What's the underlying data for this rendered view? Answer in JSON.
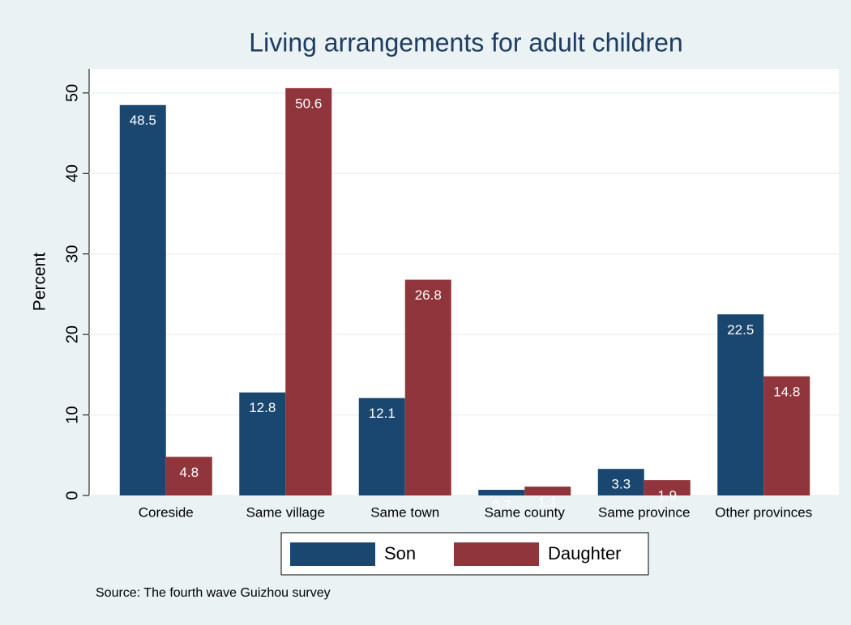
{
  "chart_data": {
    "type": "bar",
    "title": "Living arrangements for adult children",
    "y_label": "Percent",
    "categories": [
      "Coreside",
      "Same village",
      "Same town",
      "Same county",
      "Same province",
      "Other provinces"
    ],
    "series": [
      {
        "name": "Son",
        "color": "#1a476f",
        "values": [
          48.5,
          12.8,
          12.1,
          0.7,
          3.3,
          22.5
        ]
      },
      {
        "name": "Daughter",
        "color": "#90353b",
        "values": [
          4.8,
          50.6,
          26.8,
          1.1,
          1.9,
          14.8
        ]
      }
    ],
    "ylim": [
      0,
      53
    ],
    "yticks": [
      0,
      10,
      20,
      30,
      40,
      50
    ],
    "grid": true,
    "note": "Source: The fourth wave Guizhou survey"
  }
}
